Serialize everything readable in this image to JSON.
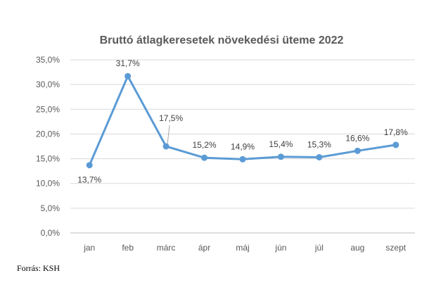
{
  "chart_data": {
    "type": "line",
    "title": "Bruttó átlagkeresetek növekedési üteme 2022",
    "categories": [
      "jan",
      "feb",
      "márc",
      "ápr",
      "máj",
      "jún",
      "júl",
      "aug",
      "szept"
    ],
    "series": [
      {
        "values": [
          13.7,
          31.7,
          17.5,
          15.2,
          14.9,
          15.4,
          15.3,
          16.6,
          17.8
        ],
        "labels": [
          "13,7%",
          "31,7%",
          "17,5%",
          "15,2%",
          "14,9%",
          "15,4%",
          "15,3%",
          "16,6%",
          "17,8%"
        ]
      }
    ],
    "yticks": [
      "0,0%",
      "5,0%",
      "10,0%",
      "15,0%",
      "20,0%",
      "25,0%",
      "30,0%",
      "35,0%"
    ],
    "ylim": [
      0,
      35
    ],
    "grid": true,
    "line_color": "#5b9bd5"
  },
  "source": "Forrás: KSH"
}
